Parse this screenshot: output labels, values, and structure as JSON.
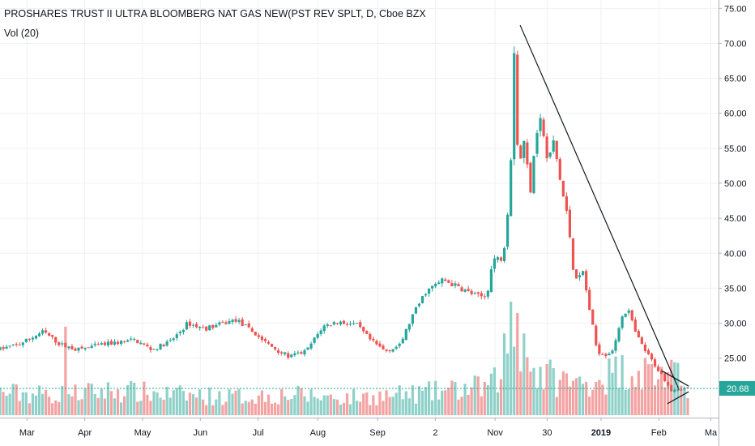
{
  "header": {
    "symbol_title": "PROSHARES TRUST II ULTRA BLOOMBERG NAT GAS NEW(PST REV SPLT, D, Cboe BZX",
    "volume_indicator": "Vol (20)"
  },
  "colors": {
    "up_candle": "#26a69a",
    "down_candle": "#ef5350",
    "up_volume": "#8fd1c9",
    "down_volume": "#f4a3a3",
    "price_line": "#26a69a",
    "price_label_bg": "#26a69a",
    "trendline": "#131722",
    "grid": "#eef0f3",
    "axis_text": "#131722"
  },
  "chart_data": {
    "type": "candlestick",
    "title": "PROSHARES TRUST II ULTRA BLOOMBERG NAT GAS NEW(PST REV SPLT, D, Cboe BZX",
    "y_axis": {
      "ticks": [
        "75.00",
        "70.00",
        "65.00",
        "60.00",
        "55.00",
        "50.00",
        "45.00",
        "40.00",
        "35.00",
        "30.00",
        "25.00"
      ],
      "tick_values": [
        75,
        70,
        65,
        60,
        55,
        50,
        45,
        40,
        35,
        30,
        25
      ],
      "range": [
        16.5,
        76.2
      ],
      "side": "right"
    },
    "x_axis": {
      "ticks": [
        "Mar",
        "Apr",
        "May",
        "Jun",
        "Jul",
        "Aug",
        "Sep",
        "2",
        "Nov",
        "30",
        "2019",
        "Feb",
        "Ma"
      ],
      "tick_day_index": [
        28,
        88,
        148,
        208,
        268,
        330,
        392,
        452,
        514,
        568,
        624,
        684,
        738
      ],
      "bold_ticks": [
        "2019"
      ]
    },
    "current_price": {
      "label": "20.68",
      "value": 20.68
    },
    "grid": true,
    "volume_indicator": "Vol (20)",
    "trendlines": [
      {
        "points": [
          [
            540,
            72.6
          ],
          [
            705,
            20.5
          ]
        ]
      },
      {
        "points": [
          [
            687,
            23.2
          ],
          [
            715,
            21.0
          ]
        ]
      },
      {
        "points": [
          [
            693,
            18.5
          ],
          [
            715,
            20.2
          ]
        ]
      }
    ],
    "price_path": [
      {
        "x": 0,
        "y": 26.3
      },
      {
        "x": 20,
        "y": 27.0
      },
      {
        "x": 45,
        "y": 28.8
      },
      {
        "x": 62,
        "y": 27.0
      },
      {
        "x": 80,
        "y": 26.2
      },
      {
        "x": 100,
        "y": 26.8
      },
      {
        "x": 120,
        "y": 27.2
      },
      {
        "x": 140,
        "y": 27.6
      },
      {
        "x": 158,
        "y": 26.2
      },
      {
        "x": 178,
        "y": 27.5
      },
      {
        "x": 195,
        "y": 30.0
      },
      {
        "x": 212,
        "y": 29.2
      },
      {
        "x": 228,
        "y": 29.8
      },
      {
        "x": 245,
        "y": 30.5
      },
      {
        "x": 260,
        "y": 29.0
      },
      {
        "x": 280,
        "y": 26.8
      },
      {
        "x": 300,
        "y": 25.2
      },
      {
        "x": 318,
        "y": 26.0
      },
      {
        "x": 335,
        "y": 29.5
      },
      {
        "x": 350,
        "y": 30.2
      },
      {
        "x": 370,
        "y": 29.8
      },
      {
        "x": 385,
        "y": 27.5
      },
      {
        "x": 400,
        "y": 26.0
      },
      {
        "x": 415,
        "y": 26.8
      },
      {
        "x": 428,
        "y": 31.0
      },
      {
        "x": 442,
        "y": 34.5
      },
      {
        "x": 460,
        "y": 36.2
      },
      {
        "x": 478,
        "y": 35.0
      },
      {
        "x": 490,
        "y": 34.2
      },
      {
        "x": 498,
        "y": 33.8
      },
      {
        "x": 505,
        "y": 33.8
      },
      {
        "x": 512,
        "y": 39.2
      },
      {
        "x": 520,
        "y": 39.2
      },
      {
        "x": 525,
        "y": 42.0
      },
      {
        "x": 530,
        "y": 52.0
      },
      {
        "x": 534,
        "y": 70.0
      },
      {
        "x": 538,
        "y": 52.0
      },
      {
        "x": 545,
        "y": 56.5
      },
      {
        "x": 550,
        "y": 48.0
      },
      {
        "x": 556,
        "y": 57.0
      },
      {
        "x": 562,
        "y": 59.5
      },
      {
        "x": 568,
        "y": 53.0
      },
      {
        "x": 575,
        "y": 56.0
      },
      {
        "x": 582,
        "y": 50.0
      },
      {
        "x": 590,
        "y": 44.5
      },
      {
        "x": 595,
        "y": 38.0
      },
      {
        "x": 600,
        "y": 36.0
      },
      {
        "x": 605,
        "y": 37.5
      },
      {
        "x": 612,
        "y": 32.0
      },
      {
        "x": 620,
        "y": 26.0
      },
      {
        "x": 630,
        "y": 25.5
      },
      {
        "x": 638,
        "y": 26.5
      },
      {
        "x": 645,
        "y": 31.0
      },
      {
        "x": 652,
        "y": 32.0
      },
      {
        "x": 660,
        "y": 28.5
      },
      {
        "x": 670,
        "y": 26.0
      },
      {
        "x": 680,
        "y": 24.0
      },
      {
        "x": 690,
        "y": 22.0
      },
      {
        "x": 697,
        "y": 20.5
      },
      {
        "x": 705,
        "y": 20.7
      },
      {
        "x": 715,
        "y": 20.68
      }
    ],
    "volume_path": [
      {
        "x": 0,
        "y": 0.22
      },
      {
        "x": 60,
        "y": 0.2
      },
      {
        "x": 120,
        "y": 0.24
      },
      {
        "x": 180,
        "y": 0.2
      },
      {
        "x": 240,
        "y": 0.18
      },
      {
        "x": 300,
        "y": 0.2
      },
      {
        "x": 360,
        "y": 0.17
      },
      {
        "x": 420,
        "y": 0.2
      },
      {
        "x": 470,
        "y": 0.24
      },
      {
        "x": 510,
        "y": 0.28
      },
      {
        "x": 535,
        "y": 0.65
      },
      {
        "x": 560,
        "y": 0.4
      },
      {
        "x": 600,
        "y": 0.3
      },
      {
        "x": 650,
        "y": 0.45
      },
      {
        "x": 690,
        "y": 0.4
      },
      {
        "x": 715,
        "y": 0.3
      }
    ],
    "volume_spikes": [
      {
        "x": 68,
        "y": 0.78
      },
      {
        "x": 522,
        "y": 0.72
      },
      {
        "x": 532,
        "y": 1.0
      },
      {
        "x": 537,
        "y": 0.9
      },
      {
        "x": 545,
        "y": 0.72
      }
    ]
  }
}
